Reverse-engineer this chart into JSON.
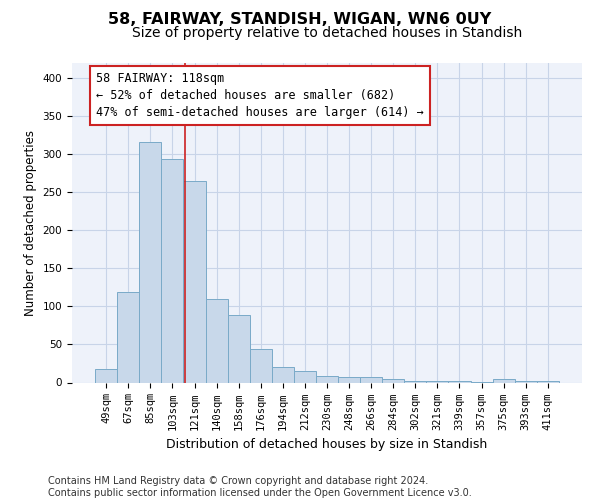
{
  "title1": "58, FAIRWAY, STANDISH, WIGAN, WN6 0UY",
  "title2": "Size of property relative to detached houses in Standish",
  "xlabel": "Distribution of detached houses by size in Standish",
  "ylabel": "Number of detached properties",
  "categories": [
    "49sqm",
    "67sqm",
    "85sqm",
    "103sqm",
    "121sqm",
    "140sqm",
    "158sqm",
    "176sqm",
    "194sqm",
    "212sqm",
    "230sqm",
    "248sqm",
    "266sqm",
    "284sqm",
    "302sqm",
    "321sqm",
    "339sqm",
    "357sqm",
    "375sqm",
    "393sqm",
    "411sqm"
  ],
  "values": [
    18,
    119,
    315,
    293,
    265,
    109,
    88,
    44,
    20,
    15,
    8,
    7,
    7,
    5,
    2,
    2,
    2,
    1,
    4,
    2,
    2
  ],
  "bar_color": "#c8d8ea",
  "bar_edge_color": "#7aaac8",
  "grid_color": "#c8d4e8",
  "bg_color": "#eef2fa",
  "annotation_line1": "58 FAIRWAY: 118sqm",
  "annotation_line2": "← 52% of detached houses are smaller (682)",
  "annotation_line3": "47% of semi-detached houses are larger (614) →",
  "vline_color": "#cc2222",
  "footer": "Contains HM Land Registry data © Crown copyright and database right 2024.\nContains public sector information licensed under the Open Government Licence v3.0.",
  "ylim": [
    0,
    420
  ],
  "yticks": [
    0,
    50,
    100,
    150,
    200,
    250,
    300,
    350,
    400
  ],
  "vline_x": 3.55,
  "title1_fontsize": 11.5,
  "title2_fontsize": 10,
  "xlabel_fontsize": 9,
  "ylabel_fontsize": 8.5,
  "tick_fontsize": 7.5,
  "annotation_fontsize": 8.5,
  "footer_fontsize": 7
}
